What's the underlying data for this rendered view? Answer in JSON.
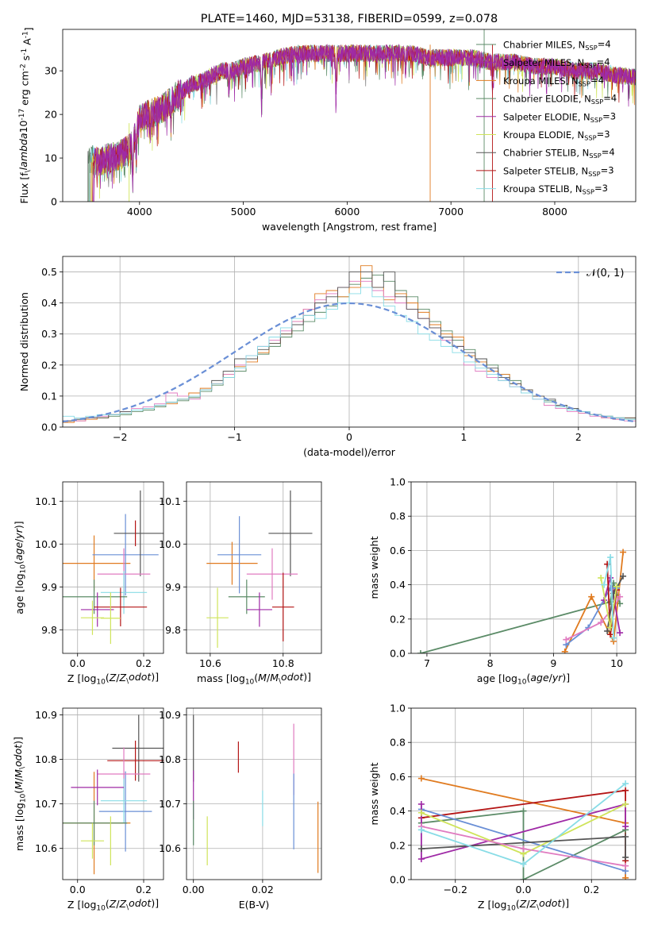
{
  "chart_data": [
    {
      "type": "line",
      "title": "PLATE=1460, MJD=53138, FIBERID=0599, z=0.078",
      "xlabel": "wavelength [Angstrom, rest frame]",
      "ylabel": "Flux [f$_\\lambda$10$^{-17}$ erg cm$^{-2}$ s$^{-1}$ A$^{-1}$]",
      "xlim": [
        3260,
        8780
      ],
      "ylim": [
        0,
        39.5
      ],
      "xticks": [
        4000,
        5000,
        6000,
        7000,
        8000
      ],
      "yticks": [
        0,
        10,
        20,
        30
      ],
      "legend_position": "upper right",
      "series": [
        {
          "name": "Chabrier MILES, N$_{SSP}$=4",
          "color": "#5b8b67"
        },
        {
          "name": "Salpeter MILES, N$_{SSP}$=4",
          "color": "#9f2aa6"
        },
        {
          "name": "Kroupa MILES, N$_{SSP}$=4",
          "color": "#e07b20"
        },
        {
          "name": "Chabrier ELODIE, N$_{SSP}$=4",
          "color": "#5b8b67"
        },
        {
          "name": "Salpeter ELODIE, N$_{SSP}$=3",
          "color": "#9f2aa6"
        },
        {
          "name": "Kroupa ELODIE, N$_{SSP}$=3",
          "color": "#cfe45a"
        },
        {
          "name": "Chabrier STELIB, N$_{SSP}$=4",
          "color": "#555555"
        },
        {
          "name": "Salpeter STELIB, N$_{SSP}$=3",
          "color": "#b41515"
        },
        {
          "name": "Kroupa STELIB, N$_{SSP}$=3",
          "color": "#88dce6"
        }
      ],
      "continuum": {
        "x": [
          3500,
          3600,
          3700,
          3800,
          3900,
          3960,
          4000,
          4100,
          4200,
          4300,
          4400,
          4500,
          4600,
          4700,
          4800,
          4900,
          5000,
          5200,
          5400,
          5600,
          5800,
          6000,
          6200,
          6400,
          6600,
          6800,
          7000,
          7200,
          7400,
          7600,
          7800,
          8000,
          8200,
          8400,
          8600,
          8780
        ],
        "y": [
          10,
          9,
          10,
          10.5,
          12,
          15,
          19,
          20,
          21,
          23,
          25,
          27,
          27.5,
          29,
          30,
          30,
          31,
          32,
          33.5,
          34,
          34,
          34,
          34,
          34,
          34,
          33,
          33,
          33,
          32,
          32,
          31,
          31,
          30,
          30,
          29,
          28.5
        ]
      }
    },
    {
      "type": "bar",
      "xlabel": "(data-model)/error",
      "ylabel": "Normed distribution",
      "xlim": [
        -2.5,
        2.5
      ],
      "ylim": [
        0,
        0.55
      ],
      "xticks": [
        -2,
        -1,
        0,
        1,
        2
      ],
      "yticks": [
        0.0,
        0.1,
        0.2,
        0.3,
        0.4,
        0.5
      ],
      "legend_position": "upper right",
      "curve": {
        "name": "$\\mathcal{N}(0,1)$",
        "color": "#6a8fd6"
      },
      "bin_edges_start": -2.5,
      "bin_width": 0.1,
      "series": [
        {
          "color": "#5b8b67",
          "values": [
            0.02,
            0.025,
            0.03,
            0.03,
            0.035,
            0.04,
            0.05,
            0.055,
            0.065,
            0.08,
            0.085,
            0.095,
            0.115,
            0.135,
            0.16,
            0.18,
            0.22,
            0.235,
            0.26,
            0.29,
            0.31,
            0.34,
            0.37,
            0.39,
            0.42,
            0.46,
            0.48,
            0.49,
            0.47,
            0.44,
            0.42,
            0.38,
            0.34,
            0.31,
            0.28,
            0.25,
            0.22,
            0.2,
            0.17,
            0.15,
            0.12,
            0.1,
            0.085,
            0.07,
            0.06,
            0.05,
            0.04,
            0.035,
            0.03,
            0.025
          ]
        },
        {
          "color": "#e07b20",
          "values": [
            0.015,
            0.02,
            0.025,
            0.03,
            0.04,
            0.045,
            0.055,
            0.06,
            0.07,
            0.075,
            0.09,
            0.11,
            0.125,
            0.14,
            0.17,
            0.195,
            0.21,
            0.24,
            0.27,
            0.3,
            0.34,
            0.38,
            0.43,
            0.44,
            0.42,
            0.45,
            0.52,
            0.45,
            0.41,
            0.43,
            0.4,
            0.37,
            0.33,
            0.3,
            0.29,
            0.23,
            0.21,
            0.18,
            0.17,
            0.14,
            0.12,
            0.1,
            0.08,
            0.065,
            0.055,
            0.045,
            0.04,
            0.03,
            0.025,
            0.03
          ]
        },
        {
          "color": "#e07bc0",
          "values": [
            0.02,
            0.02,
            0.03,
            0.035,
            0.04,
            0.05,
            0.06,
            0.065,
            0.075,
            0.11,
            0.1,
            0.09,
            0.12,
            0.14,
            0.17,
            0.2,
            0.23,
            0.26,
            0.28,
            0.31,
            0.34,
            0.38,
            0.41,
            0.43,
            0.45,
            0.47,
            0.47,
            0.44,
            0.42,
            0.4,
            0.38,
            0.35,
            0.32,
            0.28,
            0.26,
            0.2,
            0.18,
            0.16,
            0.15,
            0.13,
            0.11,
            0.09,
            0.07,
            0.06,
            0.05,
            0.045,
            0.035,
            0.03,
            0.025,
            0.02
          ]
        },
        {
          "color": "#555555",
          "values": [
            0.02,
            0.025,
            0.03,
            0.03,
            0.04,
            0.05,
            0.055,
            0.06,
            0.07,
            0.08,
            0.09,
            0.1,
            0.12,
            0.15,
            0.18,
            0.22,
            0.22,
            0.25,
            0.27,
            0.3,
            0.33,
            0.36,
            0.4,
            0.42,
            0.45,
            0.5,
            0.5,
            0.45,
            0.5,
            0.42,
            0.38,
            0.35,
            0.32,
            0.29,
            0.26,
            0.24,
            0.22,
            0.19,
            0.16,
            0.14,
            0.12,
            0.1,
            0.09,
            0.07,
            0.06,
            0.05,
            0.04,
            0.035,
            0.03,
            0.03
          ]
        },
        {
          "color": "#88dce6",
          "values": [
            0.035,
            0.03,
            0.035,
            0.04,
            0.04,
            0.045,
            0.055,
            0.06,
            0.07,
            0.08,
            0.09,
            0.1,
            0.12,
            0.14,
            0.16,
            0.19,
            0.23,
            0.26,
            0.29,
            0.32,
            0.35,
            0.36,
            0.35,
            0.38,
            0.4,
            0.43,
            0.45,
            0.42,
            0.39,
            0.36,
            0.34,
            0.3,
            0.28,
            0.26,
            0.24,
            0.21,
            0.19,
            0.17,
            0.15,
            0.13,
            0.11,
            0.09,
            0.08,
            0.065,
            0.055,
            0.05,
            0.04,
            0.035,
            0.03,
            0.025
          ]
        }
      ]
    },
    {
      "type": "scatter",
      "xlabel": "Z [log$_{10}$($Z/Z_\\odot$)]",
      "ylabel": "age  [log$_{10}$($age/yr$)]",
      "xlim": [
        -0.045,
        0.26
      ],
      "ylim": [
        9.745,
        10.145
      ],
      "xticks": [
        0.0,
        0.2
      ],
      "yticks": [
        9.8,
        9.9,
        10.0,
        10.1
      ],
      "points": [
        {
          "x": 0.05,
          "y": 9.955,
          "xerr": 0.11,
          "yerr": 0.065,
          "color": "#e07b20"
        },
        {
          "x": 0.145,
          "y": 9.975,
          "xerr": 0.1,
          "yerr": 0.095,
          "color": "#6a8fd6"
        },
        {
          "x": 0.19,
          "y": 10.025,
          "xerr": 0.08,
          "yerr": 0.1,
          "color": "#555555"
        },
        {
          "x": 0.175,
          "y": 10.025,
          "xerr": 0.0,
          "yerr": 0.03,
          "color": "#b41515"
        },
        {
          "x": 0.14,
          "y": 9.93,
          "xerr": 0.08,
          "yerr": 0.06,
          "color": "#e07bc0"
        },
        {
          "x": 0.14,
          "y": 9.887,
          "xerr": 0.07,
          "yerr": 0.05,
          "color": "#88dce6"
        },
        {
          "x": 0.05,
          "y": 9.877,
          "xerr": 0.1,
          "yerr": 0.04,
          "color": "#5b8b67"
        },
        {
          "x": 0.06,
          "y": 9.847,
          "xerr": 0.05,
          "yerr": 0.04,
          "color": "#9f2aa6"
        },
        {
          "x": 0.13,
          "y": 9.853,
          "xerr": 0.08,
          "yerr": 0.045,
          "color": "#b41515"
        },
        {
          "x": 0.045,
          "y": 9.828,
          "xerr": 0.035,
          "yerr": 0.04,
          "color": "#cfe45a"
        },
        {
          "x": 0.1,
          "y": 9.827,
          "xerr": 0.03,
          "yerr": 0.06,
          "color": "#cfe45a"
        }
      ]
    },
    {
      "type": "scatter",
      "xlabel": "mass [log$_{10}$($M/M_\\odot$)]",
      "xlim": [
        10.535,
        10.905
      ],
      "ylim": [
        9.745,
        10.145
      ],
      "xticks": [
        10.6,
        10.8
      ],
      "yticks": [
        9.8,
        9.9,
        10.0,
        10.1
      ],
      "points": [
        {
          "x": 10.66,
          "y": 9.955,
          "xerr": 0.07,
          "yerr": 0.05,
          "color": "#e07b20"
        },
        {
          "x": 10.68,
          "y": 9.975,
          "xerr": 0.06,
          "yerr": 0.09,
          "color": "#6a8fd6"
        },
        {
          "x": 10.82,
          "y": 10.025,
          "xerr": 0.06,
          "yerr": 0.1,
          "color": "#555555"
        },
        {
          "x": 10.77,
          "y": 9.93,
          "xerr": 0.07,
          "yerr": 0.06,
          "color": "#e07bc0"
        },
        {
          "x": 10.7,
          "y": 9.877,
          "xerr": 0.05,
          "yerr": 0.04,
          "color": "#5b8b67"
        },
        {
          "x": 10.735,
          "y": 9.847,
          "xerr": 0.035,
          "yerr": 0.04,
          "color": "#9f2aa6"
        },
        {
          "x": 10.8,
          "y": 9.853,
          "xerr": 0.03,
          "yerr": 0.08,
          "color": "#b41515"
        },
        {
          "x": 10.62,
          "y": 9.828,
          "xerr": 0.03,
          "yerr": 0.07,
          "color": "#cfe45a"
        }
      ]
    },
    {
      "type": "line",
      "xlabel": "age  [log$_{10}$($age/yr$)]",
      "ylabel": "mass weight",
      "xlim": [
        6.75,
        10.3
      ],
      "ylim": [
        0,
        1.0
      ],
      "xticks": [
        7,
        8,
        9,
        10
      ],
      "yticks": [
        0.0,
        0.2,
        0.4,
        0.6,
        0.8,
        1.0
      ],
      "series": [
        {
          "color": "#5b8b67",
          "x": [
            6.9,
            9.9,
            9.95,
            10.05
          ],
          "y": [
            0.0,
            0.3,
            0.41,
            0.29
          ]
        },
        {
          "color": "#e07b20",
          "x": [
            9.18,
            9.6,
            9.95,
            10.1
          ],
          "y": [
            0.01,
            0.33,
            0.07,
            0.59
          ]
        },
        {
          "color": "#6a8fd6",
          "x": [
            9.2,
            9.55,
            9.9,
            10.0
          ],
          "y": [
            0.05,
            0.15,
            0.38,
            0.38
          ]
        },
        {
          "color": "#e07bc0",
          "x": [
            9.2,
            9.75,
            9.95,
            10.05
          ],
          "y": [
            0.08,
            0.18,
            0.27,
            0.33
          ]
        },
        {
          "color": "#9f2aa6",
          "x": [
            9.8,
            9.9,
            10.05
          ],
          "y": [
            0.31,
            0.44,
            0.12
          ]
        },
        {
          "color": "#b41515",
          "x": [
            9.85,
            9.9,
            10.0
          ],
          "y": [
            0.52,
            0.11,
            0.37
          ]
        },
        {
          "color": "#555555",
          "x": [
            9.85,
            9.95,
            10.1
          ],
          "y": [
            0.13,
            0.35,
            0.45
          ]
        },
        {
          "color": "#cfe45a",
          "x": [
            9.75,
            9.9,
            10.0
          ],
          "y": [
            0.44,
            0.15,
            0.39
          ]
        },
        {
          "color": "#88dce6",
          "x": [
            9.8,
            9.9,
            9.95
          ],
          "y": [
            0.4,
            0.56,
            0.09
          ]
        }
      ]
    },
    {
      "type": "scatter",
      "xlabel": "Z [log$_{10}$($Z/Z_\\odot$)]",
      "ylabel": "mass [log$_{10}$($M/M_\\odot$)]",
      "xlim": [
        -0.045,
        0.26
      ],
      "ylim": [
        10.53,
        10.915
      ],
      "xticks": [
        0.0,
        0.2
      ],
      "yticks": [
        10.6,
        10.7,
        10.8,
        10.9
      ],
      "points": [
        {
          "x": 0.05,
          "y": 10.657,
          "xerr": 0.11,
          "yerr": 0.115,
          "color": "#e07b20"
        },
        {
          "x": 0.145,
          "y": 10.683,
          "xerr": 0.08,
          "yerr": 0.09,
          "color": "#6a8fd6"
        },
        {
          "x": 0.185,
          "y": 10.825,
          "xerr": 0.08,
          "yerr": 0.075,
          "color": "#555555"
        },
        {
          "x": 0.175,
          "y": 10.797,
          "xerr": 0.085,
          "yerr": 0.045,
          "color": "#b41515"
        },
        {
          "x": 0.14,
          "y": 10.767,
          "xerr": 0.08,
          "yerr": 0.06,
          "color": "#e07bc0"
        },
        {
          "x": 0.14,
          "y": 10.707,
          "xerr": 0.07,
          "yerr": 0.05,
          "color": "#88dce6"
        },
        {
          "x": 0.05,
          "y": 10.657,
          "xerr": 0.1,
          "yerr": 0.05,
          "color": "#5b8b67"
        },
        {
          "x": 0.06,
          "y": 10.737,
          "xerr": 0.08,
          "yerr": 0.04,
          "color": "#9f2aa6"
        },
        {
          "x": 0.045,
          "y": 10.617,
          "xerr": 0.035,
          "yerr": 0.04,
          "color": "#cfe45a"
        },
        {
          "x": 0.1,
          "y": 10.617,
          "xerr": 0.0,
          "yerr": 0.055,
          "color": "#cfe45a"
        }
      ]
    },
    {
      "type": "scatter",
      "xlabel": "E(B-V)",
      "xlim": [
        -0.002,
        0.037
      ],
      "ylim": [
        10.53,
        10.915
      ],
      "xticks": [
        0.0,
        0.02
      ],
      "yticks": [
        10.6,
        10.7,
        10.8,
        10.9
      ],
      "points": [
        {
          "x": 0.0,
          "y": 10.825,
          "xerr": 0.0,
          "yerr": 0.075,
          "color": "#555555"
        },
        {
          "x": 0.0,
          "y": 10.72,
          "xerr": 0.0,
          "yerr": 0.055,
          "color": "#9f2aa6"
        },
        {
          "x": 0.0,
          "y": 10.657,
          "xerr": 0.0,
          "yerr": 0.05,
          "color": "#5b8b67"
        },
        {
          "x": 0.004,
          "y": 10.617,
          "xerr": 0.0,
          "yerr": 0.055,
          "color": "#cfe45a"
        },
        {
          "x": 0.013,
          "y": 10.805,
          "xerr": 0.0,
          "yerr": 0.035,
          "color": "#b41515"
        },
        {
          "x": 0.02,
          "y": 10.69,
          "xerr": 0.0,
          "yerr": 0.04,
          "color": "#88dce6"
        },
        {
          "x": 0.029,
          "y": 10.8,
          "xerr": 0.0,
          "yerr": 0.08,
          "color": "#e07bc0"
        },
        {
          "x": 0.029,
          "y": 10.683,
          "xerr": 0.0,
          "yerr": 0.085,
          "color": "#6a8fd6"
        },
        {
          "x": 0.036,
          "y": 10.625,
          "xerr": 0.0,
          "yerr": 0.08,
          "color": "#e07b20"
        }
      ]
    },
    {
      "type": "line",
      "xlabel": "Z [log$_{10}$($Z/Z_\\odot$)]",
      "ylabel": "mass weight",
      "xlim": [
        -0.33,
        0.33
      ],
      "ylim": [
        0,
        1.0
      ],
      "xticks": [
        -0.2,
        0.0,
        0.2
      ],
      "yticks": [
        0.0,
        0.2,
        0.4,
        0.6,
        0.8,
        1.0
      ],
      "series": [
        {
          "color": "#e07b20",
          "x": [
            -0.3,
            0.3,
            0.3
          ],
          "y": [
            0.59,
            0.33,
            0.01
          ]
        },
        {
          "color": "#b41515",
          "x": [
            -0.3,
            0.3,
            0.3
          ],
          "y": [
            0.36,
            0.52,
            0.11
          ]
        },
        {
          "color": "#5b8b67",
          "x": [
            -0.3,
            0.0,
            0.0,
            0.3
          ],
          "y": [
            0.33,
            0.4,
            0.0,
            0.29
          ]
        },
        {
          "color": "#6a8fd6",
          "x": [
            -0.3,
            0.3
          ],
          "y": [
            0.41,
            0.05
          ]
        },
        {
          "color": "#9f2aa6",
          "x": [
            -0.3,
            -0.3,
            0.3,
            0.3
          ],
          "y": [
            0.44,
            0.12,
            0.44,
            0.31
          ]
        },
        {
          "color": "#cfe45a",
          "x": [
            -0.3,
            0.0,
            0.3
          ],
          "y": [
            0.39,
            0.15,
            0.44
          ]
        },
        {
          "color": "#555555",
          "x": [
            -0.3,
            0.3,
            0.3
          ],
          "y": [
            0.18,
            0.25,
            0.13
          ]
        },
        {
          "color": "#e07bc0",
          "x": [
            -0.3,
            0.0,
            0.3
          ],
          "y": [
            0.31,
            0.18,
            0.08
          ]
        },
        {
          "color": "#88dce6",
          "x": [
            -0.3,
            0.0,
            0.3
          ],
          "y": [
            0.29,
            0.09,
            0.56
          ]
        }
      ]
    }
  ]
}
